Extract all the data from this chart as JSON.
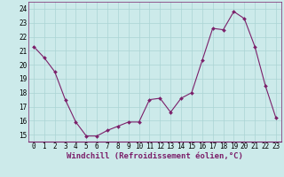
{
  "x": [
    0,
    1,
    2,
    3,
    4,
    5,
    6,
    7,
    8,
    9,
    10,
    11,
    12,
    13,
    14,
    15,
    16,
    17,
    18,
    19,
    20,
    21,
    22,
    23
  ],
  "y": [
    21.3,
    20.5,
    19.5,
    17.5,
    15.9,
    14.9,
    14.9,
    15.3,
    15.6,
    15.9,
    15.9,
    17.5,
    17.6,
    16.6,
    17.6,
    18.0,
    20.3,
    22.6,
    22.5,
    23.8,
    23.3,
    21.3,
    18.5,
    16.2
  ],
  "line_color": "#7b1f6a",
  "marker": "D",
  "marker_size": 2.0,
  "bg_color": "#cceaea",
  "grid_color": "#aad4d4",
  "xlabel": "Windchill (Refroidissement éolien,°C)",
  "xlabel_fontsize": 6.5,
  "yticks": [
    15,
    16,
    17,
    18,
    19,
    20,
    21,
    22,
    23,
    24
  ],
  "xticks": [
    0,
    1,
    2,
    3,
    4,
    5,
    6,
    7,
    8,
    9,
    10,
    11,
    12,
    13,
    14,
    15,
    16,
    17,
    18,
    19,
    20,
    21,
    22,
    23
  ],
  "ylim": [
    14.5,
    24.5
  ],
  "xlim": [
    -0.5,
    23.5
  ],
  "tick_fontsize": 5.5
}
